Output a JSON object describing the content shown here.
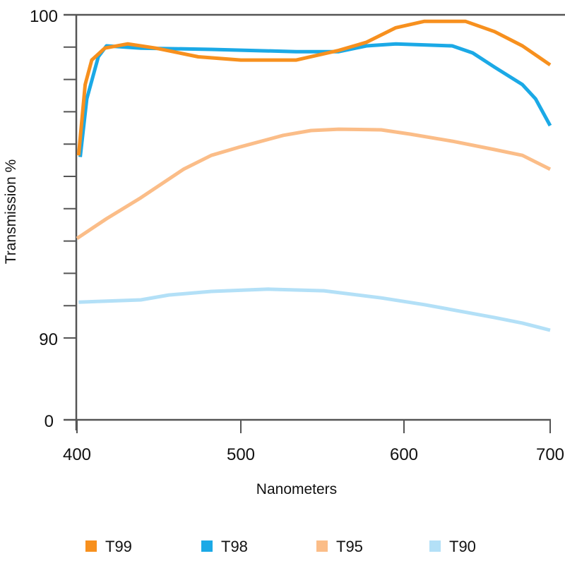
{
  "chart_data": {
    "type": "line",
    "title": "",
    "xlabel": "Nanometers",
    "ylabel": "Transmission %",
    "x_ticks": [
      400,
      500,
      600,
      700
    ],
    "y_tick_labels": [
      "100",
      "90",
      "0"
    ],
    "y_axis_note": "broken axis: 0 then 90 to 100 with unlabeled minor ticks every 1%",
    "xlim": [
      400,
      700
    ],
    "ylim": [
      90,
      100
    ],
    "grid": false,
    "legend_position": "bottom",
    "series": [
      {
        "name": "T99",
        "color": "#f7901e",
        "x": [
          401,
          405,
          409,
          417,
          431,
          448,
          474,
          500,
          534,
          560,
          577,
          595,
          614,
          642,
          662,
          681,
          700
        ],
        "y": [
          95.65,
          97.84,
          98.6,
          98.97,
          99.1,
          98.97,
          98.7,
          98.6,
          98.6,
          98.9,
          99.15,
          99.6,
          99.8,
          99.8,
          99.48,
          99.04,
          98.45
        ]
      },
      {
        "name": "T98",
        "color": "#1ba9e6",
        "x": [
          402,
          406,
          413,
          418,
          439,
          482,
          534,
          560,
          577,
          595,
          633,
          647,
          662,
          681,
          690,
          700
        ],
        "y": [
          95.6,
          97.4,
          98.7,
          99.04,
          98.97,
          98.93,
          98.86,
          98.86,
          99.04,
          99.1,
          99.04,
          98.82,
          98.38,
          97.84,
          97.4,
          96.57
        ]
      },
      {
        "name": "T95",
        "color": "#fbbd88",
        "x": [
          400,
          418,
          439,
          465,
          482,
          500,
          526,
          543,
          560,
          586,
          604,
          633,
          662,
          681,
          700
        ],
        "y": [
          93.08,
          93.69,
          94.34,
          95.22,
          95.65,
          95.92,
          96.27,
          96.42,
          96.46,
          96.44,
          96.31,
          96.09,
          95.83,
          95.65,
          95.22
        ]
      },
      {
        "name": "T90",
        "color": "#b3e0f7",
        "x": [
          401,
          439,
          456,
          482,
          517,
          551,
          586,
          614,
          642,
          662,
          681,
          700
        ],
        "y": [
          91.11,
          91.18,
          91.33,
          91.44,
          91.51,
          91.46,
          91.24,
          91.03,
          90.8,
          90.63,
          90.46,
          90.24
        ]
      }
    ]
  }
}
